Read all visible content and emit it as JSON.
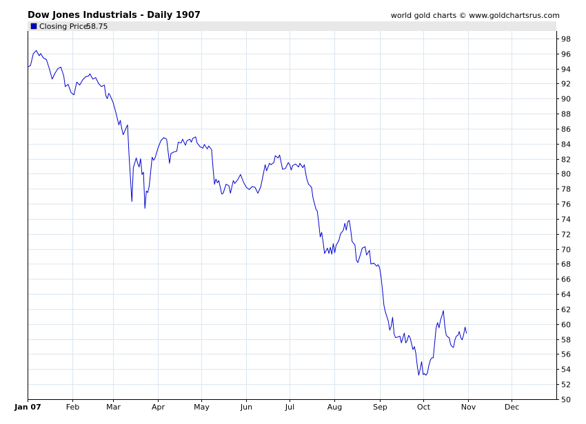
{
  "chart_data": {
    "type": "line",
    "title": "Dow Jones Industrials - Daily 1907",
    "credit": "world gold charts © www.goldchartsrus.com",
    "legend": {
      "label": "Closing Price:",
      "value": "58.75",
      "color": "#0000cc"
    },
    "ylim": [
      50,
      99
    ],
    "yticks": [
      50,
      52,
      54,
      56,
      58,
      60,
      62,
      64,
      66,
      68,
      70,
      72,
      74,
      76,
      78,
      80,
      82,
      84,
      86,
      88,
      90,
      92,
      94,
      96,
      98
    ],
    "xlim": [
      0,
      365
    ],
    "months": [
      {
        "label": "Jan 07",
        "day": 0,
        "bold": true
      },
      {
        "label": "Feb",
        "day": 31
      },
      {
        "label": "Mar",
        "day": 59
      },
      {
        "label": "Apr",
        "day": 90
      },
      {
        "label": "May",
        "day": 120
      },
      {
        "label": "Jun",
        "day": 151
      },
      {
        "label": "Jul",
        "day": 181
      },
      {
        "label": "Aug",
        "day": 212
      },
      {
        "label": "Sep",
        "day": 243
      },
      {
        "label": "Oct",
        "day": 273
      },
      {
        "label": "Nov",
        "day": 304
      },
      {
        "label": "Dec",
        "day": 334
      }
    ],
    "series": [
      {
        "color": "#0000cc",
        "points": [
          [
            0,
            94.2
          ],
          [
            2,
            94.4
          ],
          [
            4,
            96.0
          ],
          [
            6,
            96.4
          ],
          [
            8,
            95.7
          ],
          [
            9,
            96.0
          ],
          [
            11,
            95.4
          ],
          [
            13,
            95.2
          ],
          [
            15,
            94.0
          ],
          [
            17,
            92.6
          ],
          [
            19,
            93.4
          ],
          [
            21,
            94.0
          ],
          [
            23,
            94.2
          ],
          [
            25,
            93.0
          ],
          [
            26,
            91.6
          ],
          [
            28,
            91.9
          ],
          [
            30,
            90.8
          ],
          [
            32,
            90.5
          ],
          [
            34,
            92.2
          ],
          [
            36,
            91.8
          ],
          [
            38,
            92.5
          ],
          [
            40,
            92.9
          ],
          [
            42,
            93.0
          ],
          [
            43,
            93.3
          ],
          [
            45,
            92.6
          ],
          [
            47,
            92.8
          ],
          [
            49,
            92.0
          ],
          [
            51,
            91.6
          ],
          [
            53,
            91.8
          ],
          [
            54,
            90.4
          ],
          [
            55,
            90.0
          ],
          [
            56,
            90.7
          ],
          [
            57,
            90.4
          ],
          [
            59,
            89.5
          ],
          [
            61,
            88.1
          ],
          [
            63,
            86.5
          ],
          [
            64,
            87.1
          ],
          [
            65,
            86.0
          ],
          [
            66,
            85.2
          ],
          [
            68,
            86.1
          ],
          [
            69,
            86.5
          ],
          [
            70,
            82.6
          ],
          [
            72,
            76.3
          ],
          [
            73,
            80.8
          ],
          [
            75,
            82.1
          ],
          [
            76,
            81.4
          ],
          [
            77,
            80.9
          ],
          [
            78,
            82.0
          ],
          [
            79,
            79.9
          ],
          [
            80,
            80.2
          ],
          [
            81,
            75.4
          ],
          [
            82,
            77.7
          ],
          [
            83,
            77.5
          ],
          [
            84,
            78.4
          ],
          [
            86,
            82.2
          ],
          [
            87,
            81.8
          ],
          [
            88,
            82.1
          ],
          [
            90,
            83.4
          ],
          [
            92,
            84.4
          ],
          [
            94,
            84.8
          ],
          [
            96,
            84.6
          ],
          [
            98,
            81.4
          ],
          [
            99,
            82.7
          ],
          [
            101,
            82.9
          ],
          [
            103,
            83.0
          ],
          [
            104,
            84.2
          ],
          [
            106,
            84.1
          ],
          [
            107,
            84.6
          ],
          [
            109,
            83.8
          ],
          [
            110,
            84.4
          ],
          [
            112,
            84.6
          ],
          [
            113,
            84.2
          ],
          [
            114,
            84.7
          ],
          [
            116,
            84.9
          ],
          [
            117,
            84.1
          ],
          [
            119,
            83.6
          ],
          [
            121,
            83.4
          ],
          [
            122,
            83.9
          ],
          [
            124,
            83.3
          ],
          [
            125,
            83.7
          ],
          [
            127,
            83.2
          ],
          [
            128,
            80.8
          ],
          [
            129,
            78.6
          ],
          [
            130,
            79.3
          ],
          [
            131,
            78.8
          ],
          [
            132,
            79.1
          ],
          [
            134,
            77.3
          ],
          [
            135,
            77.4
          ],
          [
            137,
            78.6
          ],
          [
            139,
            78.4
          ],
          [
            140,
            77.4
          ],
          [
            142,
            79.1
          ],
          [
            143,
            78.7
          ],
          [
            145,
            79.2
          ],
          [
            147,
            79.9
          ],
          [
            149,
            78.9
          ],
          [
            151,
            78.2
          ],
          [
            153,
            77.9
          ],
          [
            155,
            78.3
          ],
          [
            157,
            78.2
          ],
          [
            159,
            77.4
          ],
          [
            161,
            78.3
          ],
          [
            163,
            80.2
          ],
          [
            164,
            81.2
          ],
          [
            165,
            80.4
          ],
          [
            167,
            81.4
          ],
          [
            168,
            81.2
          ],
          [
            170,
            81.5
          ],
          [
            171,
            82.4
          ],
          [
            173,
            82.1
          ],
          [
            174,
            82.5
          ],
          [
            176,
            80.6
          ],
          [
            178,
            80.7
          ],
          [
            180,
            81.5
          ],
          [
            181,
            81.2
          ],
          [
            182,
            80.5
          ],
          [
            183,
            81.1
          ],
          [
            185,
            81.3
          ],
          [
            187,
            80.9
          ],
          [
            188,
            81.4
          ],
          [
            190,
            80.8
          ],
          [
            191,
            81.2
          ],
          [
            192,
            80.0
          ],
          [
            193,
            79.1
          ],
          [
            194,
            78.6
          ],
          [
            196,
            78.2
          ],
          [
            197,
            76.8
          ],
          [
            199,
            75.3
          ],
          [
            200,
            75.0
          ],
          [
            201,
            73.4
          ],
          [
            202,
            71.6
          ],
          [
            203,
            72.2
          ],
          [
            204,
            70.9
          ],
          [
            205,
            69.4
          ],
          [
            207,
            70.1
          ],
          [
            208,
            69.4
          ],
          [
            209,
            70.2
          ],
          [
            210,
            69.3
          ],
          [
            211,
            70.7
          ],
          [
            212,
            69.5
          ],
          [
            213,
            70.5
          ],
          [
            214,
            70.8
          ],
          [
            215,
            71.2
          ],
          [
            216,
            72.0
          ],
          [
            218,
            72.5
          ],
          [
            219,
            73.4
          ],
          [
            220,
            72.5
          ],
          [
            221,
            73.6
          ],
          [
            222,
            73.8
          ],
          [
            223,
            72.6
          ],
          [
            224,
            71.0
          ],
          [
            226,
            70.5
          ],
          [
            227,
            68.5
          ],
          [
            228,
            68.2
          ],
          [
            230,
            69.4
          ],
          [
            231,
            70.1
          ],
          [
            233,
            70.3
          ],
          [
            234,
            69.2
          ],
          [
            236,
            69.8
          ],
          [
            237,
            68.0
          ],
          [
            239,
            68.1
          ],
          [
            241,
            67.7
          ],
          [
            242,
            67.9
          ],
          [
            243,
            67.5
          ],
          [
            244,
            66.3
          ],
          [
            245,
            64.5
          ],
          [
            246,
            62.5
          ],
          [
            247,
            61.6
          ],
          [
            249,
            60.4
          ],
          [
            250,
            59.2
          ],
          [
            251,
            59.7
          ],
          [
            252,
            60.9
          ],
          [
            253,
            58.7
          ],
          [
            254,
            58.2
          ],
          [
            256,
            58.3
          ],
          [
            257,
            58.4
          ],
          [
            258,
            57.5
          ],
          [
            260,
            58.8
          ],
          [
            261,
            57.5
          ],
          [
            262,
            57.8
          ],
          [
            263,
            58.5
          ],
          [
            264,
            58.2
          ],
          [
            266,
            56.6
          ],
          [
            267,
            57.0
          ],
          [
            268,
            56.1
          ],
          [
            269,
            54.4
          ],
          [
            270,
            53.2
          ],
          [
            271,
            54.0
          ],
          [
            272,
            55.0
          ],
          [
            273,
            53.3
          ],
          [
            274,
            53.4
          ],
          [
            275,
            53.2
          ],
          [
            276,
            53.5
          ],
          [
            277,
            54.5
          ],
          [
            278,
            55.2
          ],
          [
            279,
            55.5
          ],
          [
            280,
            55.5
          ],
          [
            281,
            57.5
          ],
          [
            282,
            59.5
          ],
          [
            283,
            60.2
          ],
          [
            284,
            59.5
          ],
          [
            285,
            60.5
          ],
          [
            286,
            61.1
          ],
          [
            287,
            61.8
          ],
          [
            288,
            59.7
          ],
          [
            289,
            58.5
          ],
          [
            290,
            58.3
          ],
          [
            291,
            58.2
          ],
          [
            292,
            57.3
          ],
          [
            293,
            57.0
          ],
          [
            294,
            56.9
          ],
          [
            295,
            57.9
          ],
          [
            296,
            58.4
          ],
          [
            297,
            58.5
          ],
          [
            298,
            59.0
          ],
          [
            299,
            58.2
          ],
          [
            300,
            57.9
          ],
          [
            301,
            58.6
          ],
          [
            302,
            59.6
          ],
          [
            303,
            58.75
          ]
        ]
      }
    ]
  }
}
